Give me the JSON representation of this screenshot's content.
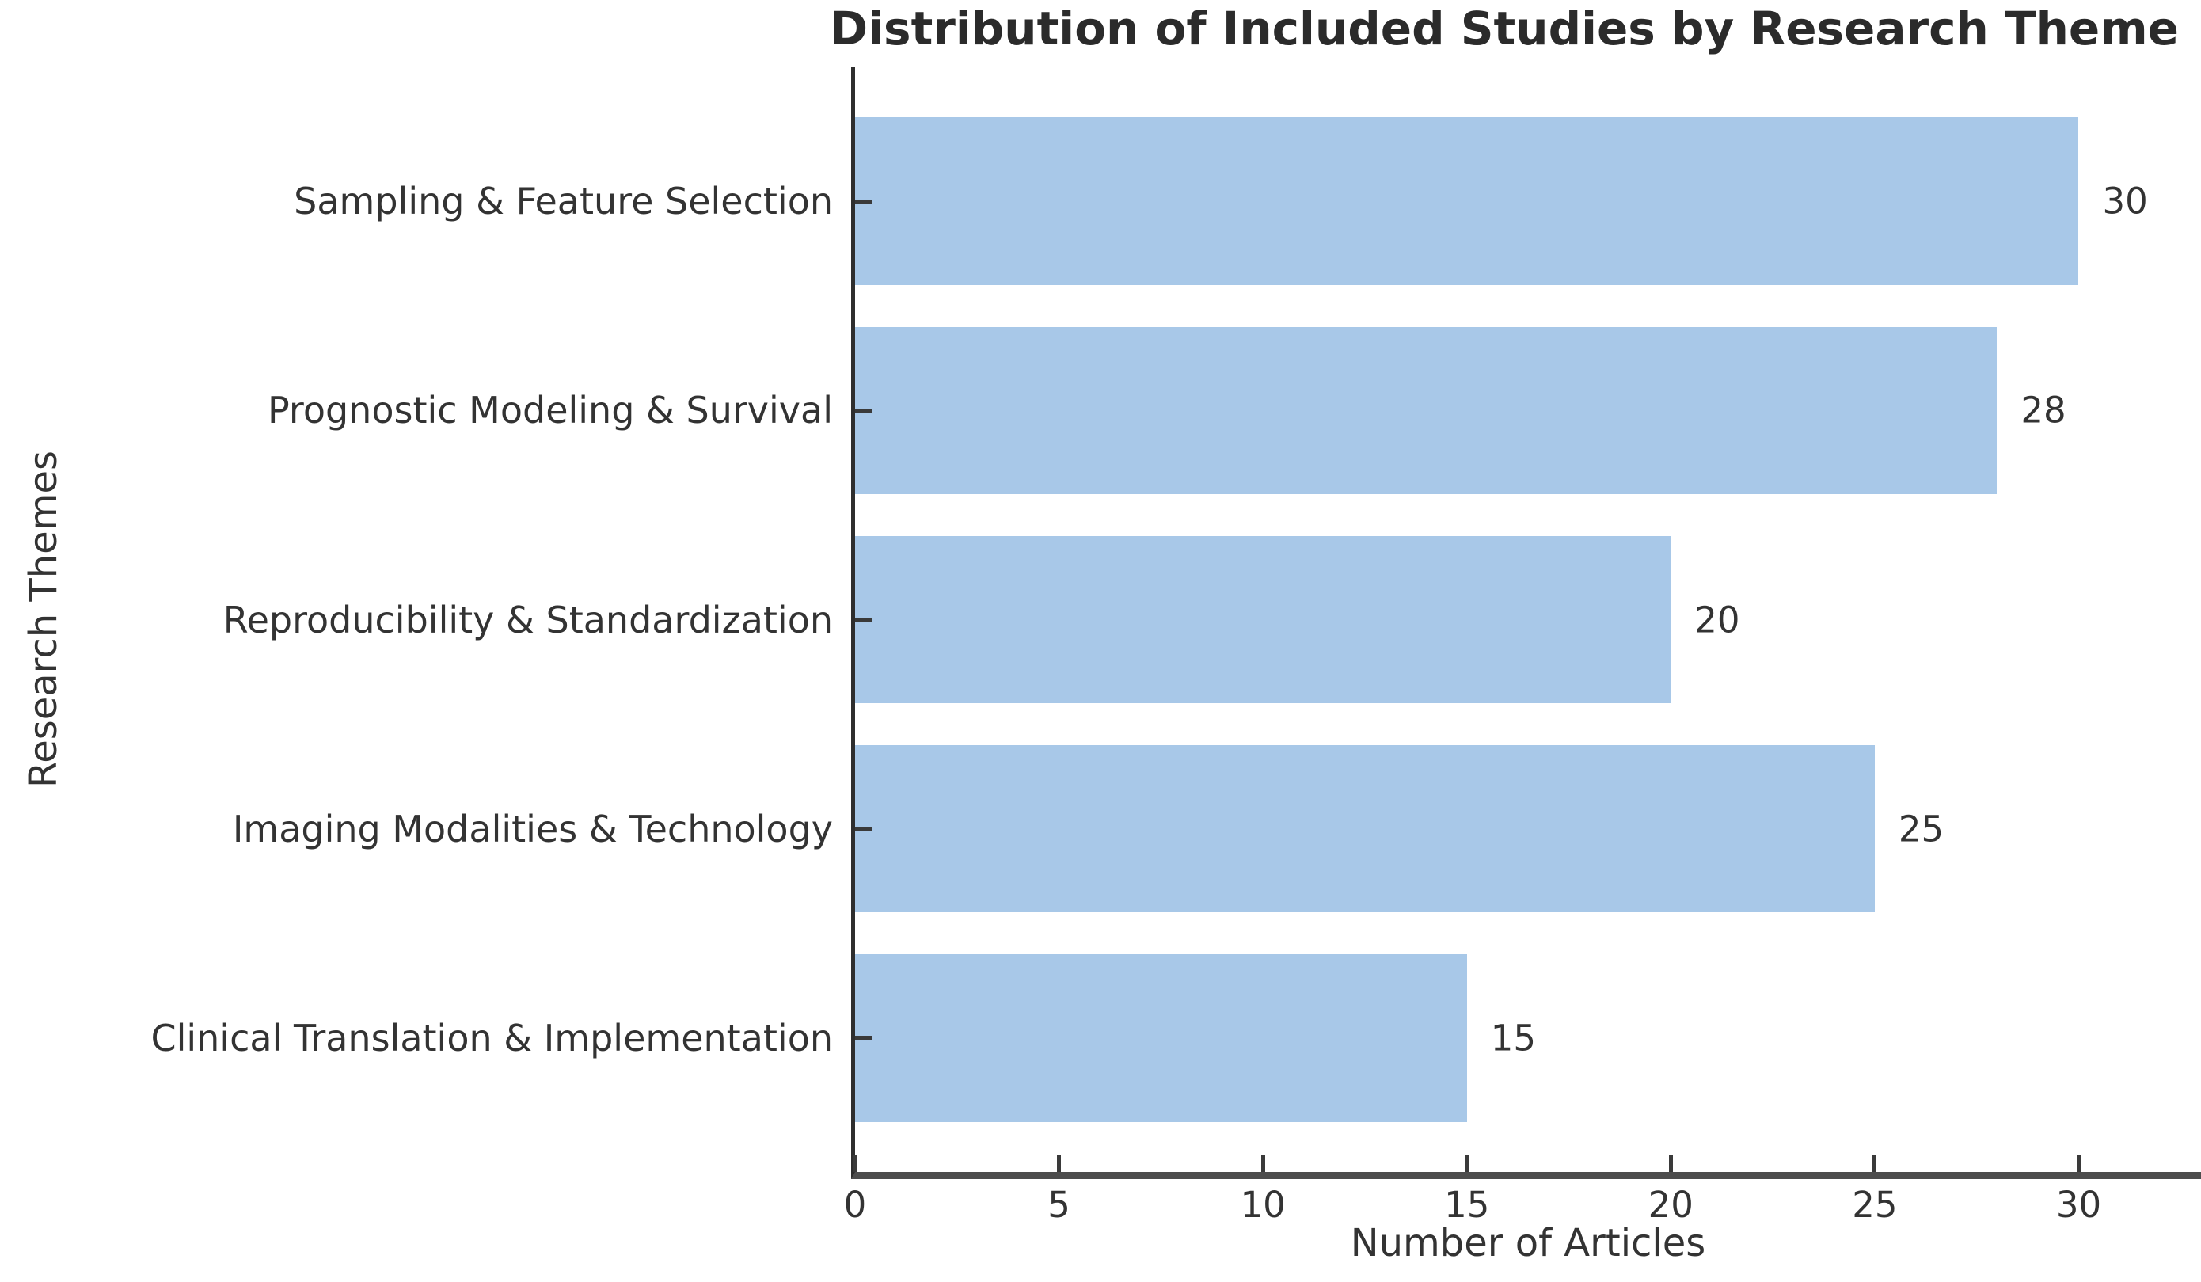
{
  "chart_data": {
    "type": "bar",
    "orientation": "horizontal",
    "title": "Distribution of Included Studies by Research Theme",
    "xlabel": "Number of Articles",
    "ylabel": "Research Themes",
    "categories": [
      "Sampling & Feature Selection",
      "Prognostic Modeling & Survival",
      "Reproducibility & Standardization",
      "Imaging Modalities & Technology",
      "Clinical Translation & Implementation"
    ],
    "values": [
      30,
      28,
      20,
      25,
      15
    ],
    "bar_labels": [
      "30",
      "28",
      "20",
      "25",
      "15"
    ],
    "xticks": [
      0,
      5,
      10,
      15,
      20,
      25,
      30
    ],
    "xlim": [
      0,
      33
    ],
    "grid": false,
    "legend": null,
    "bar_color": "#a8c8e8",
    "axis_color": "#3a3a3a",
    "text_color": "#333333"
  }
}
